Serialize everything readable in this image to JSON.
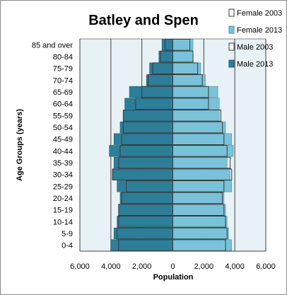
{
  "chart_data": {
    "type": "bar",
    "orientation": "horizontal",
    "title": "Batley and Spen",
    "xlabel": "Population",
    "ylabel": "Age Groups (years)",
    "xlim": [
      -6000,
      6000
    ],
    "xticks": [
      -6000,
      -4000,
      -2000,
      0,
      2000,
      4000,
      6000
    ],
    "xtick_labels": [
      "6,000",
      "4,000",
      "2,000",
      "0",
      "2,000",
      "4,000",
      "6,000"
    ],
    "grid": "vertical",
    "legend_position": "top-right",
    "categories": [
      "0-4",
      "5-9",
      "10-14",
      "15-19",
      "20-24",
      "25-29",
      "30-34",
      "35-39",
      "40-44",
      "45-49",
      "50-54",
      "55-59",
      "60-64",
      "65-69",
      "70-74",
      "75-79",
      "80-84",
      "85 and over"
    ],
    "series": [
      {
        "name": "Female 2003",
        "color": "#ffffff",
        "stroke": "#3a3a3a",
        "values": [
          3400,
          3500,
          3400,
          3300,
          3200,
          3300,
          3800,
          3700,
          3500,
          3300,
          3200,
          3100,
          2300,
          2300,
          1900,
          1600,
          1300,
          1100
        ]
      },
      {
        "name": "Female 2013",
        "color": "#79c2d9",
        "stroke": "#4a8fa6",
        "values": [
          3800,
          3600,
          3500,
          3400,
          3300,
          3800,
          3700,
          3500,
          3900,
          3800,
          3400,
          3000,
          3000,
          2900,
          2100,
          1800,
          1300,
          1300
        ]
      },
      {
        "name": "Male 2003",
        "color": "#ffffff",
        "stroke": "#3a3a3a",
        "values": [
          -3500,
          -3600,
          -3500,
          -3500,
          -3300,
          -3000,
          -3900,
          -3500,
          -3400,
          -3300,
          -3200,
          -3200,
          -2400,
          -2000,
          -1600,
          -1300,
          -800,
          -500
        ]
      },
      {
        "name": "Male 2013",
        "color": "#2c7e99",
        "stroke": "#1f5f75",
        "values": [
          -4000,
          -3800,
          -3600,
          -3500,
          -3400,
          -3600,
          -3900,
          -3800,
          -4100,
          -3800,
          -3400,
          -3200,
          -3100,
          -2800,
          -1700,
          -1500,
          -900,
          -700
        ]
      }
    ]
  }
}
